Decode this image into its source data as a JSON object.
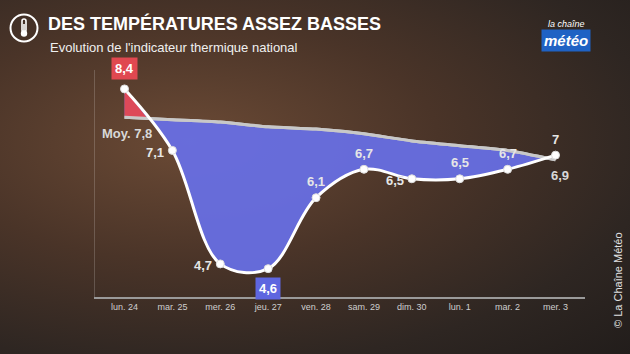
{
  "chart_data": {
    "type": "line",
    "title": "DES TEMPÉRATURES ASSEZ BASSES",
    "subtitle": "Evolution de l'indicateur thermique national",
    "categories": [
      "lun. 24",
      "mar. 25",
      "mer. 26",
      "jeu. 27",
      "ven. 28",
      "sam. 29",
      "dim. 30",
      "lun. 1",
      "mar. 2",
      "mer. 3"
    ],
    "series": [
      {
        "values": [
          8.4,
          7.1,
          4.7,
          4.6,
          6.1,
          6.7,
          6.5,
          6.5,
          6.7,
          7
        ],
        "value_labels": [
          "8,4",
          "7,1",
          "4,7",
          "4,6",
          "6,1",
          "6,7",
          "6,5",
          "6,5",
          "6,7",
          "7"
        ],
        "color": "#ffffff",
        "marker": "circle",
        "line_style": "solid"
      },
      {
        "values": [
          7.8,
          7.75,
          7.7,
          7.6,
          7.55,
          7.45,
          7.3,
          7.2,
          7.1,
          6.9
        ],
        "value_labels": [
          "Moy. 7,8",
          null,
          null,
          null,
          null,
          null,
          null,
          null,
          null,
          "6,9"
        ],
        "color": "#c8c8c8",
        "line_style": "solid"
      }
    ],
    "ylim": [
      4,
      8.8
    ],
    "grid": false,
    "data_labels": true,
    "tick_labels": "x",
    "annotations": [
      "la chaîne",
      "météo",
      "© La Chaîne Météo"
    ]
  }
}
